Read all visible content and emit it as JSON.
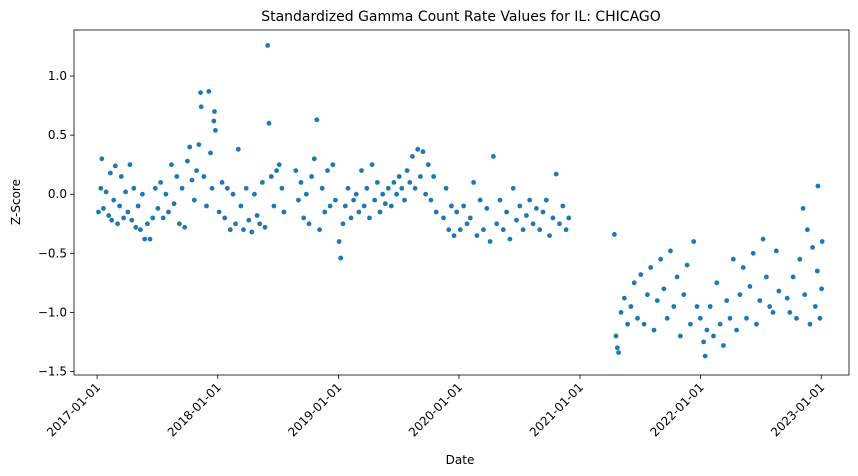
{
  "chart_data": {
    "type": "scatter",
    "title": "Standardized Gamma Count Rate Values for IL: CHICAGO",
    "xlabel": "Date",
    "ylabel": "Z-Score",
    "xlim": [
      "2016-10-23",
      "2023-03-26"
    ],
    "ylim": [
      -1.53,
      1.39
    ],
    "x_ticks": [
      "2017-01-01",
      "2018-01-01",
      "2019-01-01",
      "2020-01-01",
      "2021-01-01",
      "2022-01-01",
      "2023-01-01"
    ],
    "y_ticks": [
      -1.5,
      -1.0,
      -0.5,
      0.0,
      0.5,
      1.0
    ],
    "y_tick_labels": [
      "−1.5",
      "−1.0",
      "−0.5",
      "0.0",
      "0.5",
      "1.0"
    ],
    "grid": false,
    "marker_color": "#1f77b4",
    "series": [
      {
        "points": [
          [
            "2017-01-05",
            -0.15
          ],
          [
            "2017-01-12",
            0.05
          ],
          [
            "2017-01-15",
            0.3
          ],
          [
            "2017-01-20",
            -0.12
          ],
          [
            "2017-01-28",
            0.02
          ],
          [
            "2017-02-05",
            -0.18
          ],
          [
            "2017-02-10",
            0.18
          ],
          [
            "2017-02-14",
            -0.22
          ],
          [
            "2017-02-20",
            -0.05
          ],
          [
            "2017-02-25",
            0.24
          ],
          [
            "2017-03-04",
            -0.25
          ],
          [
            "2017-03-10",
            -0.1
          ],
          [
            "2017-03-15",
            0.15
          ],
          [
            "2017-03-22",
            -0.2
          ],
          [
            "2017-03-28",
            0.02
          ],
          [
            "2017-04-04",
            -0.15
          ],
          [
            "2017-04-10",
            0.25
          ],
          [
            "2017-04-16",
            -0.22
          ],
          [
            "2017-04-22",
            0.05
          ],
          [
            "2017-04-28",
            -0.28
          ],
          [
            "2017-05-05",
            -0.1
          ],
          [
            "2017-05-12",
            -0.3
          ],
          [
            "2017-05-18",
            0.0
          ],
          [
            "2017-05-25",
            -0.38
          ],
          [
            "2017-06-02",
            -0.25
          ],
          [
            "2017-06-10",
            -0.38
          ],
          [
            "2017-06-18",
            -0.2
          ],
          [
            "2017-06-26",
            0.05
          ],
          [
            "2017-07-04",
            -0.12
          ],
          [
            "2017-07-12",
            0.1
          ],
          [
            "2017-07-20",
            -0.2
          ],
          [
            "2017-07-28",
            0.0
          ],
          [
            "2017-08-05",
            -0.15
          ],
          [
            "2017-08-14",
            0.25
          ],
          [
            "2017-08-22",
            -0.08
          ],
          [
            "2017-08-30",
            0.15
          ],
          [
            "2017-09-07",
            -0.25
          ],
          [
            "2017-09-15",
            0.05
          ],
          [
            "2017-09-23",
            -0.28
          ],
          [
            "2017-10-01",
            0.28
          ],
          [
            "2017-10-08",
            0.4
          ],
          [
            "2017-10-15",
            0.12
          ],
          [
            "2017-10-22",
            -0.05
          ],
          [
            "2017-10-29",
            0.2
          ],
          [
            "2017-11-05",
            0.42
          ],
          [
            "2017-11-10",
            0.86
          ],
          [
            "2017-11-12",
            0.74
          ],
          [
            "2017-11-20",
            0.15
          ],
          [
            "2017-11-28",
            -0.1
          ],
          [
            "2017-12-05",
            0.87
          ],
          [
            "2017-12-10",
            0.35
          ],
          [
            "2017-12-15",
            0.05
          ],
          [
            "2017-12-20",
            0.62
          ],
          [
            "2017-12-22",
            0.7
          ],
          [
            "2017-12-25",
            0.54
          ],
          [
            "2018-01-05",
            -0.15
          ],
          [
            "2018-01-14",
            0.1
          ],
          [
            "2018-01-22",
            -0.2
          ],
          [
            "2018-01-30",
            0.05
          ],
          [
            "2018-02-08",
            -0.3
          ],
          [
            "2018-02-16",
            0.0
          ],
          [
            "2018-02-24",
            -0.25
          ],
          [
            "2018-03-04",
            0.38
          ],
          [
            "2018-03-12",
            -0.1
          ],
          [
            "2018-03-20",
            -0.3
          ],
          [
            "2018-03-28",
            0.05
          ],
          [
            "2018-04-05",
            -0.22
          ],
          [
            "2018-04-14",
            -0.32
          ],
          [
            "2018-04-22",
            0.0
          ],
          [
            "2018-04-30",
            -0.18
          ],
          [
            "2018-05-08",
            -0.25
          ],
          [
            "2018-05-16",
            0.1
          ],
          [
            "2018-05-24",
            -0.28
          ],
          [
            "2018-06-01",
            1.26
          ],
          [
            "2018-06-05",
            0.6
          ],
          [
            "2018-06-12",
            0.15
          ],
          [
            "2018-06-20",
            -0.1
          ],
          [
            "2018-06-28",
            0.2
          ],
          [
            "2018-07-06",
            0.25
          ],
          [
            "2018-07-14",
            0.05
          ],
          [
            "2018-07-20",
            -0.15
          ],
          [
            "2018-08-25",
            0.2
          ],
          [
            "2018-09-02",
            -0.05
          ],
          [
            "2018-09-10",
            0.1
          ],
          [
            "2018-09-18",
            -0.2
          ],
          [
            "2018-09-26",
            0.0
          ],
          [
            "2018-10-04",
            -0.25
          ],
          [
            "2018-10-12",
            0.15
          ],
          [
            "2018-10-20",
            0.3
          ],
          [
            "2018-10-28",
            0.63
          ],
          [
            "2018-11-05",
            -0.3
          ],
          [
            "2018-11-13",
            0.05
          ],
          [
            "2018-11-21",
            -0.15
          ],
          [
            "2018-11-29",
            0.2
          ],
          [
            "2018-12-07",
            -0.1
          ],
          [
            "2018-12-15",
            0.25
          ],
          [
            "2018-12-23",
            -0.05
          ],
          [
            "2019-01-03",
            -0.4
          ],
          [
            "2019-01-08",
            -0.54
          ],
          [
            "2019-01-15",
            -0.25
          ],
          [
            "2019-01-22",
            -0.1
          ],
          [
            "2019-01-30",
            0.05
          ],
          [
            "2019-02-08",
            -0.2
          ],
          [
            "2019-02-16",
            -0.05
          ],
          [
            "2019-02-24",
            0.0
          ],
          [
            "2019-03-04",
            -0.15
          ],
          [
            "2019-03-12",
            0.2
          ],
          [
            "2019-03-20",
            -0.1
          ],
          [
            "2019-03-28",
            0.05
          ],
          [
            "2019-04-05",
            -0.2
          ],
          [
            "2019-04-13",
            0.25
          ],
          [
            "2019-04-21",
            -0.05
          ],
          [
            "2019-04-29",
            0.1
          ],
          [
            "2019-05-07",
            -0.15
          ],
          [
            "2019-05-15",
            0.0
          ],
          [
            "2019-05-23",
            -0.08
          ],
          [
            "2019-06-01",
            0.05
          ],
          [
            "2019-06-10",
            -0.1
          ],
          [
            "2019-06-18",
            0.1
          ],
          [
            "2019-06-26",
            0.0
          ],
          [
            "2019-07-04",
            0.15
          ],
          [
            "2019-07-12",
            0.05
          ],
          [
            "2019-07-20",
            -0.05
          ],
          [
            "2019-07-28",
            0.2
          ],
          [
            "2019-08-05",
            0.1
          ],
          [
            "2019-08-13",
            0.32
          ],
          [
            "2019-08-21",
            0.05
          ],
          [
            "2019-08-29",
            0.38
          ],
          [
            "2019-09-06",
            0.15
          ],
          [
            "2019-09-14",
            0.36
          ],
          [
            "2019-09-22",
            0.0
          ],
          [
            "2019-09-30",
            0.25
          ],
          [
            "2019-10-08",
            -0.05
          ],
          [
            "2019-10-16",
            0.15
          ],
          [
            "2019-10-24",
            -0.15
          ],
          [
            "2019-11-15",
            -0.2
          ],
          [
            "2019-11-23",
            0.05
          ],
          [
            "2019-12-01",
            -0.3
          ],
          [
            "2019-12-09",
            -0.1
          ],
          [
            "2019-12-17",
            -0.35
          ],
          [
            "2019-12-25",
            -0.15
          ],
          [
            "2020-01-05",
            -0.3
          ],
          [
            "2020-01-15",
            -0.1
          ],
          [
            "2020-01-25",
            -0.25
          ],
          [
            "2020-02-04",
            -0.2
          ],
          [
            "2020-02-14",
            0.1
          ],
          [
            "2020-02-24",
            -0.35
          ],
          [
            "2020-03-05",
            -0.05
          ],
          [
            "2020-03-15",
            -0.3
          ],
          [
            "2020-03-25",
            -0.12
          ],
          [
            "2020-04-04",
            -0.4
          ],
          [
            "2020-04-14",
            0.32
          ],
          [
            "2020-04-24",
            -0.25
          ],
          [
            "2020-05-04",
            -0.05
          ],
          [
            "2020-05-14",
            -0.3
          ],
          [
            "2020-05-24",
            -0.15
          ],
          [
            "2020-06-03",
            -0.38
          ],
          [
            "2020-06-13",
            0.05
          ],
          [
            "2020-06-23",
            -0.22
          ],
          [
            "2020-07-03",
            -0.1
          ],
          [
            "2020-07-13",
            -0.3
          ],
          [
            "2020-07-23",
            -0.18
          ],
          [
            "2020-08-02",
            -0.05
          ],
          [
            "2020-08-12",
            -0.25
          ],
          [
            "2020-08-22",
            -0.12
          ],
          [
            "2020-09-01",
            -0.3
          ],
          [
            "2020-09-11",
            -0.15
          ],
          [
            "2020-09-21",
            -0.05
          ],
          [
            "2020-10-01",
            -0.35
          ],
          [
            "2020-10-11",
            -0.2
          ],
          [
            "2020-10-21",
            0.17
          ],
          [
            "2020-10-31",
            -0.25
          ],
          [
            "2020-11-10",
            -0.1
          ],
          [
            "2020-11-20",
            -0.3
          ],
          [
            "2020-11-28",
            -0.2
          ],
          [
            "2021-04-15",
            -0.34
          ],
          [
            "2021-04-20",
            -1.2
          ],
          [
            "2021-04-24",
            -1.3
          ],
          [
            "2021-04-28",
            -1.34
          ],
          [
            "2021-05-05",
            -1.0
          ],
          [
            "2021-05-15",
            -0.88
          ],
          [
            "2021-05-25",
            -1.1
          ],
          [
            "2021-06-04",
            -0.95
          ],
          [
            "2021-06-14",
            -0.75
          ],
          [
            "2021-06-24",
            -1.05
          ],
          [
            "2021-07-04",
            -0.68
          ],
          [
            "2021-07-14",
            -1.1
          ],
          [
            "2021-07-24",
            -0.85
          ],
          [
            "2021-08-03",
            -0.62
          ],
          [
            "2021-08-13",
            -1.15
          ],
          [
            "2021-08-23",
            -0.9
          ],
          [
            "2021-09-02",
            -0.55
          ],
          [
            "2021-09-12",
            -0.8
          ],
          [
            "2021-09-22",
            -1.05
          ],
          [
            "2021-10-02",
            -0.48
          ],
          [
            "2021-10-12",
            -0.95
          ],
          [
            "2021-10-22",
            -0.7
          ],
          [
            "2021-11-01",
            -1.2
          ],
          [
            "2021-11-11",
            -0.85
          ],
          [
            "2021-11-21",
            -0.6
          ],
          [
            "2021-12-01",
            -1.1
          ],
          [
            "2021-12-11",
            -0.4
          ],
          [
            "2021-12-21",
            -0.95
          ],
          [
            "2021-12-31",
            -1.05
          ],
          [
            "2022-01-10",
            -1.25
          ],
          [
            "2022-01-15",
            -1.37
          ],
          [
            "2022-01-20",
            -1.15
          ],
          [
            "2022-01-30",
            -0.95
          ],
          [
            "2022-02-09",
            -1.2
          ],
          [
            "2022-02-19",
            -0.75
          ],
          [
            "2022-03-01",
            -1.1
          ],
          [
            "2022-03-11",
            -1.28
          ],
          [
            "2022-03-21",
            -0.9
          ],
          [
            "2022-03-31",
            -1.05
          ],
          [
            "2022-04-10",
            -0.55
          ],
          [
            "2022-04-20",
            -1.15
          ],
          [
            "2022-04-30",
            -0.85
          ],
          [
            "2022-05-10",
            -0.62
          ],
          [
            "2022-05-20",
            -1.05
          ],
          [
            "2022-05-30",
            -0.78
          ],
          [
            "2022-06-09",
            -0.5
          ],
          [
            "2022-06-19",
            -1.1
          ],
          [
            "2022-06-29",
            -0.9
          ],
          [
            "2022-07-09",
            -0.38
          ],
          [
            "2022-07-19",
            -0.7
          ],
          [
            "2022-07-29",
            -0.95
          ],
          [
            "2022-08-08",
            -1.0
          ],
          [
            "2022-08-18",
            -0.48
          ],
          [
            "2022-08-26",
            -0.82
          ],
          [
            "2022-09-20",
            -0.88
          ],
          [
            "2022-09-28",
            -1.0
          ],
          [
            "2022-10-08",
            -0.7
          ],
          [
            "2022-10-18",
            -1.05
          ],
          [
            "2022-10-28",
            -0.55
          ],
          [
            "2022-11-07",
            -0.12
          ],
          [
            "2022-11-12",
            -0.85
          ],
          [
            "2022-11-20",
            -0.3
          ],
          [
            "2022-11-28",
            -1.1
          ],
          [
            "2022-12-06",
            -0.45
          ],
          [
            "2022-12-14",
            -0.95
          ],
          [
            "2022-12-20",
            -0.65
          ],
          [
            "2022-12-22",
            0.07
          ],
          [
            "2022-12-28",
            -1.05
          ],
          [
            "2023-01-02",
            -0.8
          ],
          [
            "2023-01-04",
            -0.4
          ]
        ]
      }
    ]
  }
}
